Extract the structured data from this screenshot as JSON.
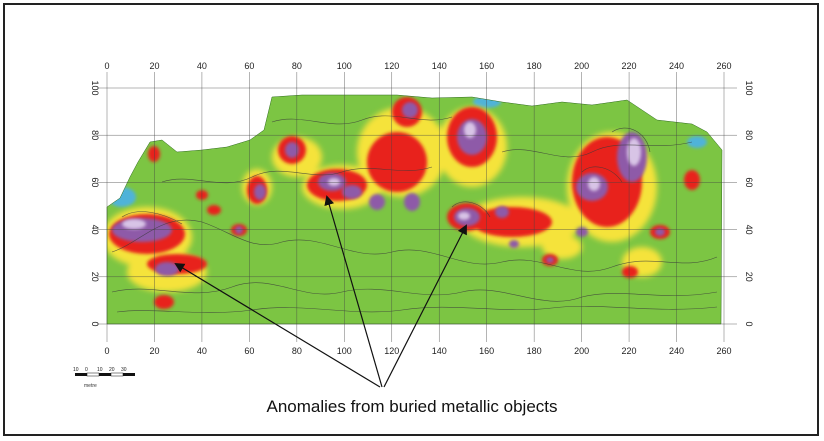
{
  "caption": "Anomalies from buried metallic objects",
  "scale_bar": {
    "ticks": [
      "10",
      "0",
      "10",
      "20",
      "30"
    ],
    "unit_label": "metre"
  },
  "map": {
    "x_axis_ticks": [
      0,
      20,
      40,
      60,
      80,
      100,
      120,
      140,
      160,
      180,
      200,
      220,
      240,
      260
    ],
    "y_axis_ticks": [
      0,
      20,
      40,
      60,
      80,
      100
    ],
    "x_range": [
      0,
      260
    ],
    "y_range": [
      0,
      100
    ],
    "grid": true,
    "colors": {
      "background": "#7cc543",
      "low": "#4fb3d9",
      "mid_yellow": "#f5e33a",
      "mid_red": "#e8231f",
      "high_purple": "#8e5aa8",
      "peak": "#d8c4e6"
    },
    "annotated_anomalies": [
      {
        "label_ref": "anomaly-west",
        "x": 29,
        "y": 25
      },
      {
        "label_ref": "anomaly-central",
        "x": 93,
        "y": 54
      },
      {
        "label_ref": "anomaly-east",
        "x": 153,
        "y": 40
      }
    ]
  }
}
